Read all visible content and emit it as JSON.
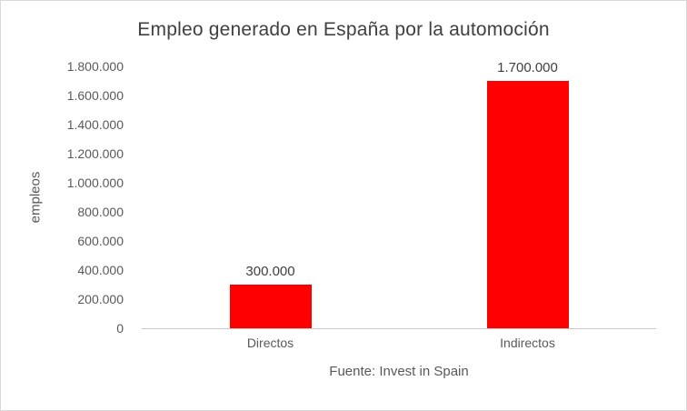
{
  "chart_data": {
    "type": "bar",
    "title": "Empleo generado en España por la automoción",
    "ylabel": "empleos",
    "caption": "Fuente: Invest in Spain",
    "categories": [
      "Directos",
      "Indirectos"
    ],
    "values": [
      300000,
      1700000
    ],
    "value_labels": [
      "300.000",
      "1.700.000"
    ],
    "y_ticks": [
      "1.800.000",
      "1.600.000",
      "1.400.000",
      "1.200.000",
      "1.000.000",
      "800.000",
      "600.000",
      "400.000",
      "200.000",
      "0"
    ],
    "ylim": [
      0,
      1800000
    ],
    "bar_color": "#ff0000",
    "grid": false,
    "legend": false
  }
}
